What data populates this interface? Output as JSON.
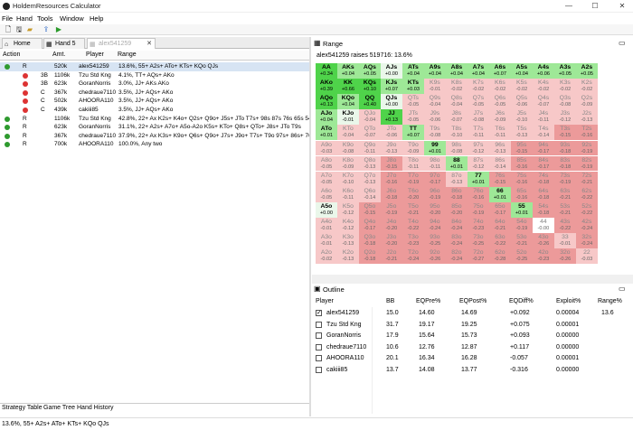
{
  "app": {
    "title": "HoldemResources Calculator",
    "min": "—",
    "max": "☐",
    "close": "✕"
  },
  "menu": [
    "File",
    "Hand",
    "Tools",
    "Window",
    "Help"
  ],
  "tabs": [
    {
      "label": "Home",
      "icon": "home-icon"
    },
    {
      "label": "Hand 5",
      "icon": "hand-icon"
    },
    {
      "label": "alex541259",
      "icon": "range-icon"
    }
  ],
  "history": {
    "headers": [
      "Action",
      "Amt.",
      "Player",
      "Range"
    ],
    "rows": [
      {
        "dot": "g",
        "action": "R",
        "amt": "520k",
        "player": "alex541259",
        "range": "13.6%, 55+ A2s+ ATo+ KTs+ KQo QJs",
        "sel": true,
        "indent": 0
      },
      {
        "dot": "r",
        "action": "3B",
        "amt": "1106k",
        "player": "Tzu Std Kng",
        "range": "4.1%, TT+ AQs+ AKo",
        "sel": false,
        "indent": 1
      },
      {
        "dot": "r",
        "action": "3B",
        "amt": "623k",
        "player": "GoranNorris",
        "range": "3.0%, JJ+ AKs AKo",
        "sel": false,
        "indent": 1
      },
      {
        "dot": "r",
        "action": "C",
        "amt": "367k",
        "player": "chedraue7110",
        "range": "3.5%, JJ+ AQs+ AKo",
        "sel": false,
        "indent": 1
      },
      {
        "dot": "r",
        "action": "C",
        "amt": "502k",
        "player": "AHOORA110",
        "range": "3.5%, JJ+ AQs+ AKo",
        "sel": false,
        "indent": 1
      },
      {
        "dot": "r",
        "action": "C",
        "amt": "439k",
        "player": "cakiii85",
        "range": "3.5%, JJ+ AQs+ AKo",
        "sel": false,
        "indent": 1
      },
      {
        "dot": "g",
        "action": "R",
        "amt": "1106k",
        "player": "Tzu Std Kng",
        "range": "42.8%, 22+ Ax K2s+ K4o+ Q2s+ Q9o+ J5s+ JTo T7s+ 98s 87s 76s 65s 54s",
        "sel": false,
        "indent": 0
      },
      {
        "dot": "g",
        "action": "R",
        "amt": "623k",
        "player": "GoranNorris",
        "range": "31.1%, 22+ A2s+ A7o+ A5o-A2o K5s+ KTo+ Q8s+ QTo+ J8s+ JTo T9s",
        "sel": false,
        "indent": 0
      },
      {
        "dot": "g",
        "action": "R",
        "amt": "367k",
        "player": "chedraue7110",
        "range": "37.9%, 22+ Ax K3s+ K9o+ Q6s+ Q9o+ J7s+ J9o+ T7s+ T9o 97s+ 86s+ 76s",
        "sel": false,
        "indent": 0
      },
      {
        "dot": "g",
        "action": "R",
        "amt": "700k",
        "player": "AHOORA110",
        "range": "100.0%, Any two",
        "sel": false,
        "indent": 0
      }
    ]
  },
  "bottom_tabs": [
    "Strategy Table",
    "Game Tree",
    "Hand History"
  ],
  "status": "13.6%, 55+ A2s+ ATo+ KTs+ KQo QJs",
  "range_panel": {
    "title": "Range",
    "subtitle": "alex541259 raises 519716: 13.6%"
  },
  "grid": {
    "ranks": [
      "A",
      "K",
      "Q",
      "J",
      "T",
      "9",
      "8",
      "7",
      "6",
      "5",
      "4",
      "3",
      "2"
    ],
    "values": [
      [
        "+0.34",
        "+0.04",
        "+0.05",
        "+0.00",
        "+0.04",
        "+0.04",
        "+0.04",
        "+0.04",
        "+0.07",
        "+0.04",
        "+0.06",
        "+0.05",
        "+0.05"
      ],
      [
        "+0.39",
        "+0.66",
        "+0.10",
        "+0.07",
        "+0.03",
        "-0.01",
        "-0.02",
        "-0.02",
        "-0.02",
        "-0.02",
        "-0.02",
        "-0.02",
        "-0.02"
      ],
      [
        "+0.13",
        "+0.04",
        "+0.40",
        "+0.00",
        "-0.05",
        "-0.04",
        "-0.04",
        "-0.05",
        "-0.05",
        "-0.06",
        "-0.07",
        "-0.08",
        "-0.09"
      ],
      [
        "+0.04",
        "-0.01",
        "-0.04",
        "+0.13",
        "-0.05",
        "-0.06",
        "-0.07",
        "-0.08",
        "-0.09",
        "-0.10",
        "-0.11",
        "-0.12",
        "-0.13"
      ],
      [
        "+0.01",
        "-0.04",
        "-0.07",
        "-0.06",
        "+0.07",
        "-0.08",
        "-0.10",
        "-0.11",
        "-0.11",
        "-0.13",
        "-0.14",
        "-0.15",
        "-0.16"
      ],
      [
        "-0.03",
        "-0.08",
        "-0.11",
        "-0.13",
        "-0.09",
        "+0.01",
        "-0.08",
        "-0.12",
        "-0.13",
        "-0.15",
        "-0.17",
        "-0.18",
        "-0.19"
      ],
      [
        "-0.05",
        "-0.09",
        "-0.13",
        "-0.15",
        "-0.11",
        "-0.11",
        "+0.01",
        "-0.12",
        "-0.14",
        "-0.16",
        "-0.17",
        "-0.18",
        "-0.19"
      ],
      [
        "-0.05",
        "-0.10",
        "-0.13",
        "-0.16",
        "-0.19",
        "-0.17",
        "-0.13",
        "+0.01",
        "-0.15",
        "-0.16",
        "-0.18",
        "-0.19",
        "-0.21"
      ],
      [
        "-0.05",
        "-0.11",
        "-0.14",
        "-0.18",
        "-0.20",
        "-0.19",
        "-0.18",
        "-0.16",
        "+0.01",
        "-0.16",
        "-0.18",
        "-0.21",
        "-0.22"
      ],
      [
        "+0.00",
        "-0.12",
        "-0.15",
        "-0.19",
        "-0.21",
        "-0.20",
        "-0.20",
        "-0.19",
        "-0.17",
        "+0.01",
        "-0.18",
        "-0.21",
        "-0.22"
      ],
      [
        "-0.01",
        "-0.12",
        "-0.17",
        "-0.20",
        "-0.22",
        "-0.24",
        "-0.24",
        "-0.23",
        "-0.21",
        "-0.19",
        "-0.00",
        "-0.22",
        "-0.24"
      ],
      [
        "-0.01",
        "-0.13",
        "-0.18",
        "-0.20",
        "-0.23",
        "-0.25",
        "-0.24",
        "-0.25",
        "-0.22",
        "-0.21",
        "-0.26",
        "-0.01",
        "-0.24"
      ],
      [
        "-0.02",
        "-0.13",
        "-0.18",
        "-0.21",
        "-0.24",
        "-0.26",
        "-0.24",
        "-0.27",
        "-0.28",
        "-0.25",
        "-0.23",
        "-0.26",
        "-0.03"
      ]
    ],
    "in_range": [
      [
        1,
        1,
        1,
        1,
        1,
        1,
        1,
        1,
        1,
        1,
        1,
        1,
        1
      ],
      [
        1,
        1,
        1,
        1,
        1,
        0,
        0,
        0,
        0,
        0,
        0,
        0,
        0
      ],
      [
        1,
        1,
        1,
        1,
        0,
        0,
        0,
        0,
        0,
        0,
        0,
        0,
        0
      ],
      [
        1,
        1,
        0,
        1,
        0,
        0,
        0,
        0,
        0,
        0,
        0,
        0,
        0
      ],
      [
        1,
        0,
        0,
        0,
        1,
        0,
        0,
        0,
        0,
        0,
        0,
        0,
        0
      ],
      [
        0,
        0,
        0,
        0,
        0,
        1,
        0,
        0,
        0,
        0,
        0,
        0,
        0
      ],
      [
        0,
        0,
        0,
        0,
        0,
        0,
        1,
        0,
        0,
        0,
        0,
        0,
        0
      ],
      [
        0,
        0,
        0,
        0,
        0,
        0,
        0,
        1,
        0,
        0,
        0,
        0,
        0
      ],
      [
        0,
        0,
        0,
        0,
        0,
        0,
        0,
        0,
        1,
        0,
        0,
        0,
        0
      ],
      [
        1,
        0,
        0,
        0,
        0,
        0,
        0,
        0,
        0,
        1,
        0,
        0,
        0
      ],
      [
        0,
        0,
        0,
        0,
        0,
        0,
        0,
        0,
        0,
        0,
        0,
        0,
        0
      ],
      [
        0,
        0,
        0,
        0,
        0,
        0,
        0,
        0,
        0,
        0,
        0,
        0,
        0
      ],
      [
        0,
        0,
        0,
        0,
        0,
        0,
        0,
        0,
        0,
        0,
        0,
        0,
        0
      ]
    ],
    "colors": {
      "strong_pos": "#4fd34a",
      "pos": "#9ee897",
      "neutral": "#ffffff",
      "in_range_neutral": "#eaf7ea",
      "neg": "#f7c8c8",
      "strong_neg": "#ec9a9a"
    }
  },
  "outline": {
    "title": "Outline",
    "headers": [
      "Player",
      "BB",
      "EQPre%",
      "EQPost%",
      "EQDiff%",
      "Exploit%",
      "Range%"
    ],
    "rows": [
      {
        "checked": true,
        "player": "alex541259",
        "bb": "15.0",
        "eqpre": "14.60",
        "eqpost": "14.69",
        "eqdiff": "+0.092",
        "exploit": "0.00004",
        "range": "13.6"
      },
      {
        "checked": false,
        "player": "Tzu Std Kng",
        "bb": "31.7",
        "eqpre": "19.17",
        "eqpost": "19.25",
        "eqdiff": "+0.075",
        "exploit": "0.00001",
        "range": ""
      },
      {
        "checked": false,
        "player": "GoranNorris",
        "bb": "17.9",
        "eqpre": "15.64",
        "eqpost": "15.73",
        "eqdiff": "+0.093",
        "exploit": "0.00000",
        "range": ""
      },
      {
        "checked": false,
        "player": "chedraue7110",
        "bb": "10.6",
        "eqpre": "12.76",
        "eqpost": "12.87",
        "eqdiff": "+0.117",
        "exploit": "0.00000",
        "range": ""
      },
      {
        "checked": false,
        "player": "AHOORA110",
        "bb": "20.1",
        "eqpre": "16.34",
        "eqpost": "16.28",
        "eqdiff": "-0.057",
        "exploit": "0.00001",
        "range": ""
      },
      {
        "checked": false,
        "player": "cakiii85",
        "bb": "13.7",
        "eqpre": "14.08",
        "eqpost": "13.77",
        "eqdiff": "-0.316",
        "exploit": "0.00000",
        "range": ""
      }
    ]
  }
}
